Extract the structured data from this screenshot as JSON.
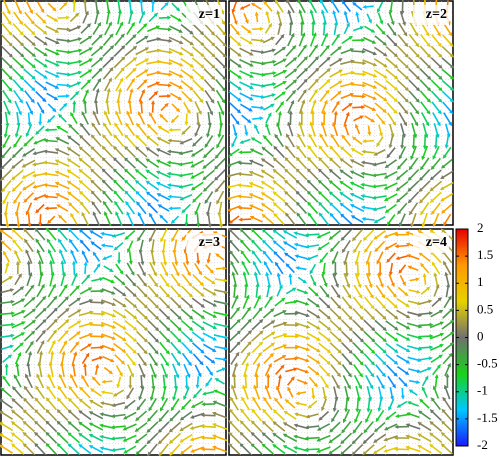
{
  "chart_data": {
    "type": "quiver",
    "panels": [
      {
        "label": "z=1"
      },
      {
        "label": "z=2"
      },
      {
        "label": "z=3"
      },
      {
        "label": "z=4"
      }
    ],
    "colorbar": {
      "lim": [
        -2,
        2
      ],
      "ticks": [
        2,
        1.5,
        1,
        0.5,
        0,
        -0.5,
        -1,
        -1.5,
        -2
      ],
      "colors": [
        "#1a1aff",
        "#00c8ff",
        "#19d219",
        "#707070",
        "#e6d200",
        "#ff9a00",
        "#e60000"
      ]
    }
  }
}
